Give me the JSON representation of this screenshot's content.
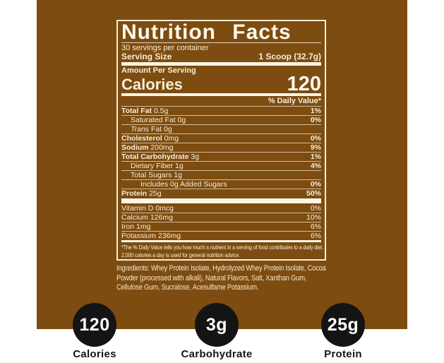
{
  "colors": {
    "background_brown": "#7d4c10",
    "label_text": "#f7edd8",
    "divider_bar": "#fbf5e8",
    "circle_fill": "#141414",
    "circle_text": "#ffffff",
    "footer_label_text": "#141414"
  },
  "label": {
    "title": "Nutrition Facts",
    "servings_per_container": "30 servings per container",
    "serving_size_label": "Serving Size",
    "serving_size_value": "1 Scoop (32.7g)",
    "amount_per_serving": "Amount Per Serving",
    "calories_label": "Calories",
    "calories_value": "120",
    "daily_value_header": "% Daily Value*",
    "rows": [
      {
        "bold": "Total Fat",
        "rest": " 0.5g",
        "dv": "1%"
      },
      {
        "rest": "Saturated Fat 0g",
        "dv": "0%"
      },
      {
        "italic": "Trans",
        "rest": " Fat 0g",
        "dv": ""
      },
      {
        "bold": "Cholesterol",
        "rest": " 0mg",
        "dv": "0%"
      },
      {
        "bold": "Sodium",
        "rest": " 200mg",
        "dv": "9%"
      },
      {
        "bold": "Total Carbohydrate",
        "rest": " 3g",
        "dv": "1%"
      },
      {
        "rest": "Dietary Fiber 1g",
        "dv": "4%"
      },
      {
        "rest": "Total Sugars 1g",
        "dv": ""
      },
      {
        "rest": "Includes 0g Added Sugars",
        "dv": "0%"
      },
      {
        "bold": "Protein",
        "rest": " 25g",
        "dv": "50%"
      }
    ],
    "vitamins": [
      {
        "rest": "Vitamin D 0mcg",
        "dv": "0%"
      },
      {
        "rest": "Calcium 126mg",
        "dv": "10%"
      },
      {
        "rest": "Iron 1mg",
        "dv": "6%"
      },
      {
        "rest": "Potassium 236mg",
        "dv": "6%"
      }
    ],
    "footnote": "*The % Daily Value tells you how much a nutrient in a serving of food contributes to a daily diet. 2,000 calories a day is used for general nutrition advice."
  },
  "ingredients": "Ingredients: Whey Protein Isolate, Hydrolyzed Whey Protein Isolate, Cocoa Powder (processed with alkali), Natural Flavors, Salt, Xanthan Gum, Cellulose Gum, Sucralose, Acesulfame Potassium.",
  "stats": [
    {
      "value": "120",
      "label": "Calories"
    },
    {
      "value": "3g",
      "label": "Carbohydrate"
    },
    {
      "value": "25g",
      "label": "Protein"
    }
  ]
}
